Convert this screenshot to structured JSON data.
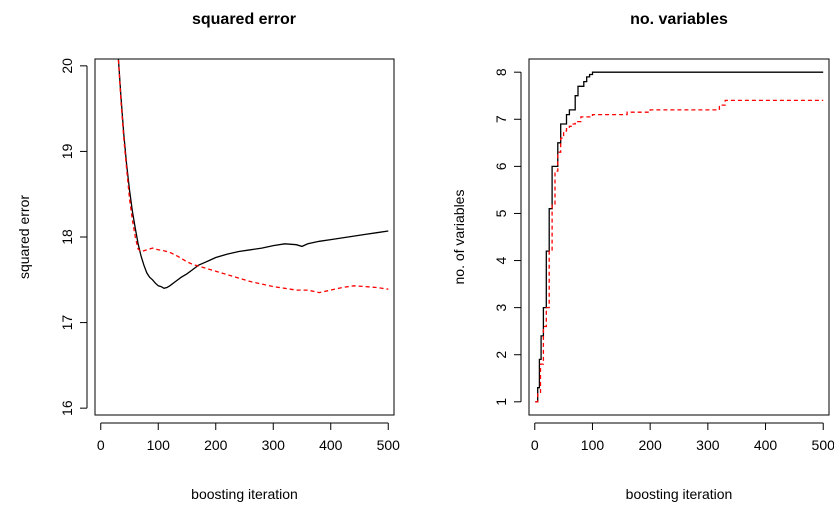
{
  "chart_data": [
    {
      "type": "line",
      "title": "squared error",
      "xlabel": "boosting iteration",
      "ylabel": "squared error",
      "xlim": [
        -10,
        510
      ],
      "ylim": [
        15.92,
        20.08
      ],
      "xticks": [
        0,
        100,
        200,
        300,
        400,
        500
      ],
      "yticks": [
        16,
        17,
        18,
        19,
        20
      ],
      "grid": false,
      "series": [
        {
          "color": "#000000",
          "style": "solid",
          "x": [
            30,
            35,
            40,
            45,
            50,
            55,
            60,
            65,
            70,
            75,
            80,
            85,
            90,
            95,
            100,
            105,
            110,
            115,
            120,
            130,
            140,
            150,
            160,
            170,
            180,
            190,
            200,
            220,
            240,
            260,
            280,
            300,
            320,
            340,
            350,
            360,
            380,
            400,
            420,
            440,
            460,
            480,
            500
          ],
          "y": [
            20.15,
            19.65,
            19.2,
            18.85,
            18.55,
            18.3,
            18.1,
            17.92,
            17.78,
            17.67,
            17.58,
            17.53,
            17.5,
            17.46,
            17.43,
            17.42,
            17.4,
            17.41,
            17.43,
            17.48,
            17.53,
            17.57,
            17.62,
            17.67,
            17.7,
            17.73,
            17.76,
            17.8,
            17.83,
            17.85,
            17.87,
            17.9,
            17.92,
            17.91,
            17.89,
            17.92,
            17.95,
            17.97,
            17.99,
            18.01,
            18.03,
            18.05,
            18.07
          ]
        },
        {
          "color": "#ff0000",
          "style": "dashed",
          "x": [
            30,
            35,
            40,
            45,
            50,
            55,
            60,
            65,
            70,
            75,
            80,
            85,
            90,
            100,
            110,
            120,
            130,
            140,
            150,
            160,
            170,
            180,
            200,
            220,
            240,
            260,
            280,
            300,
            320,
            340,
            360,
            380,
            400,
            420,
            440,
            460,
            480,
            500
          ],
          "y": [
            20.15,
            19.6,
            19.15,
            18.8,
            18.45,
            18.2,
            18.0,
            17.86,
            17.83,
            17.84,
            17.85,
            17.86,
            17.87,
            17.85,
            17.84,
            17.82,
            17.79,
            17.75,
            17.71,
            17.68,
            17.66,
            17.64,
            17.6,
            17.56,
            17.52,
            17.48,
            17.45,
            17.42,
            17.4,
            17.38,
            17.38,
            17.35,
            17.38,
            17.41,
            17.43,
            17.42,
            17.41,
            17.39
          ]
        }
      ]
    },
    {
      "type": "line",
      "title": "no. variables",
      "xlabel": "boosting iteration",
      "ylabel": "no. of variables",
      "xlim": [
        -10,
        510
      ],
      "ylim": [
        0.72,
        8.28
      ],
      "xticks": [
        0,
        100,
        200,
        300,
        400,
        500
      ],
      "yticks": [
        1,
        2,
        3,
        4,
        5,
        6,
        7,
        8
      ],
      "grid": false,
      "series": [
        {
          "color": "#000000",
          "style": "solid",
          "step": true,
          "x": [
            1,
            5,
            8,
            11,
            15,
            20,
            25,
            30,
            40,
            45,
            55,
            60,
            70,
            75,
            85,
            90,
            95,
            100,
            500
          ],
          "y": [
            1,
            1.3,
            1.9,
            2.4,
            3.0,
            4.2,
            5.1,
            6.0,
            6.5,
            6.9,
            7.1,
            7.2,
            7.5,
            7.7,
            7.8,
            7.9,
            7.95,
            8.0,
            8.0
          ]
        },
        {
          "color": "#ff0000",
          "style": "dashed",
          "step": true,
          "x": [
            1,
            5,
            10,
            15,
            20,
            25,
            30,
            35,
            40,
            45,
            50,
            55,
            60,
            65,
            70,
            80,
            90,
            100,
            130,
            160,
            200,
            250,
            300,
            320,
            330,
            500
          ],
          "y": [
            1,
            1.2,
            1.8,
            2.6,
            3.0,
            4.2,
            5.2,
            5.9,
            6.3,
            6.6,
            6.75,
            6.8,
            6.85,
            6.9,
            6.95,
            7.05,
            7.05,
            7.1,
            7.1,
            7.15,
            7.2,
            7.2,
            7.2,
            7.3,
            7.4,
            7.4
          ]
        }
      ]
    }
  ]
}
